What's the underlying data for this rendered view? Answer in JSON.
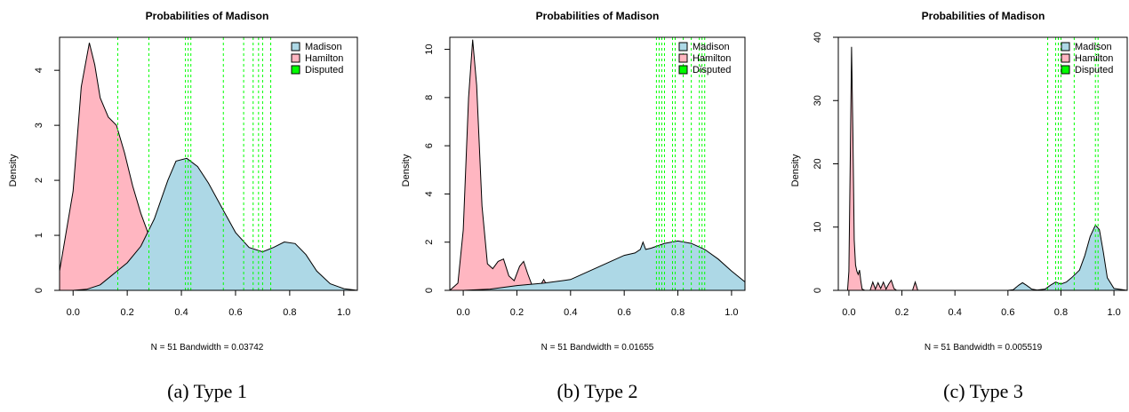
{
  "chart_data": [
    {
      "type": "area",
      "title": "Probabilities of Madison",
      "ylabel": "Density",
      "note": "N = 51   Bandwidth = 0.03742",
      "caption": "(a) Type 1",
      "xlim": [
        -0.05,
        1.05
      ],
      "ylim": [
        0,
        4.6
      ],
      "xticks": [
        0.0,
        0.2,
        0.4,
        0.6,
        0.8,
        1.0
      ],
      "xtick_labels": [
        "0.0",
        "0.2",
        "0.4",
        "0.6",
        "0.8",
        "1.0"
      ],
      "yticks": [
        0,
        1,
        2,
        3,
        4
      ],
      "ytick_labels": [
        "0",
        "1",
        "2",
        "3",
        "4"
      ],
      "legend": [
        {
          "label": "Madison",
          "color": "#ADD8E6"
        },
        {
          "label": "Hamilton",
          "color": "#FFB6C1"
        },
        {
          "label": "Disputed",
          "color": "#00FF00"
        }
      ],
      "legend_position": "top-right",
      "series": [
        {
          "name": "Hamilton",
          "color": "#FFB6C1",
          "x": [
            -0.05,
            0.0,
            0.03,
            0.06,
            0.08,
            0.1,
            0.13,
            0.16,
            0.19,
            0.22,
            0.25,
            0.28,
            0.32,
            0.36,
            0.4,
            0.44,
            0.48,
            0.5
          ],
          "y": [
            0.35,
            1.8,
            3.7,
            4.5,
            4.1,
            3.5,
            3.15,
            3.0,
            2.5,
            1.9,
            1.4,
            1.0,
            0.65,
            0.45,
            0.25,
            0.1,
            0.03,
            0.0
          ]
        },
        {
          "name": "Madison",
          "color": "#ADD8E6",
          "x": [
            0.0,
            0.05,
            0.1,
            0.15,
            0.2,
            0.25,
            0.3,
            0.35,
            0.38,
            0.42,
            0.46,
            0.5,
            0.55,
            0.6,
            0.65,
            0.7,
            0.74,
            0.78,
            0.82,
            0.86,
            0.9,
            0.95,
            1.0,
            1.05
          ],
          "y": [
            0.0,
            0.02,
            0.1,
            0.3,
            0.5,
            0.8,
            1.3,
            2.0,
            2.35,
            2.4,
            2.25,
            1.95,
            1.5,
            1.05,
            0.78,
            0.7,
            0.78,
            0.88,
            0.85,
            0.65,
            0.35,
            0.12,
            0.03,
            0.0
          ]
        }
      ],
      "disputed": [
        0.165,
        0.28,
        0.415,
        0.425,
        0.435,
        0.555,
        0.63,
        0.665,
        0.685,
        0.7,
        0.73
      ]
    },
    {
      "type": "area",
      "title": "Probabilities of Madison",
      "ylabel": "Density",
      "note": "N = 51   Bandwidth = 0.01655",
      "caption": "(b) Type 2",
      "xlim": [
        -0.05,
        1.05
      ],
      "ylim": [
        0,
        10.5
      ],
      "xticks": [
        0.0,
        0.2,
        0.4,
        0.6,
        0.8,
        1.0
      ],
      "xtick_labels": [
        "0.0",
        "0.2",
        "0.4",
        "0.6",
        "0.8",
        "1.0"
      ],
      "yticks": [
        0,
        2,
        4,
        6,
        8,
        10
      ],
      "ytick_labels": [
        "0",
        "2",
        "4",
        "6",
        "8",
        "10"
      ],
      "legend": [
        {
          "label": "Madison",
          "color": "#ADD8E6"
        },
        {
          "label": "Hamilton",
          "color": "#FFB6C1"
        },
        {
          "label": "Disputed",
          "color": "#00FF00"
        }
      ],
      "legend_position": "top-right",
      "series": [
        {
          "name": "Hamilton",
          "color": "#FFB6C1",
          "x": [
            -0.05,
            -0.02,
            0.0,
            0.02,
            0.035,
            0.05,
            0.07,
            0.09,
            0.11,
            0.13,
            0.15,
            0.17,
            0.19,
            0.21,
            0.225,
            0.24,
            0.26,
            0.28,
            0.3,
            0.32,
            0.34
          ],
          "y": [
            0.0,
            0.3,
            2.5,
            8.0,
            10.4,
            8.5,
            3.5,
            1.1,
            0.9,
            1.2,
            1.3,
            0.6,
            0.4,
            1.0,
            1.2,
            0.7,
            0.1,
            0.05,
            0.45,
            0.05,
            0.0
          ]
        },
        {
          "name": "Madison",
          "color": "#ADD8E6",
          "x": [
            0.0,
            0.1,
            0.2,
            0.3,
            0.4,
            0.5,
            0.6,
            0.64,
            0.66,
            0.67,
            0.68,
            0.7,
            0.75,
            0.8,
            0.85,
            0.9,
            0.95,
            1.0,
            1.05
          ],
          "y": [
            0.0,
            0.05,
            0.2,
            0.3,
            0.45,
            0.95,
            1.45,
            1.55,
            1.7,
            2.0,
            1.7,
            1.75,
            1.95,
            2.05,
            1.95,
            1.7,
            1.3,
            0.8,
            0.35
          ]
        }
      ],
      "disputed": [
        0.72,
        0.73,
        0.74,
        0.75,
        0.78,
        0.79,
        0.82,
        0.85,
        0.88,
        0.89,
        0.9
      ]
    },
    {
      "type": "area",
      "title": "Probabilities of Madison",
      "ylabel": "Density",
      "note": "N = 51   Bandwidth = 0.005519",
      "caption": "(c) Type 3",
      "xlim": [
        -0.04,
        1.05
      ],
      "ylim": [
        0,
        40
      ],
      "xticks": [
        0.0,
        0.2,
        0.4,
        0.6,
        0.8,
        1.0
      ],
      "xtick_labels": [
        "0.0",
        "0.2",
        "0.4",
        "0.6",
        "0.8",
        "1.0"
      ],
      "yticks": [
        0,
        10,
        20,
        30,
        40
      ],
      "ytick_labels": [
        "0",
        "10",
        "20",
        "30",
        "40"
      ],
      "legend": [
        {
          "label": "Madison",
          "color": "#ADD8E6"
        },
        {
          "label": "Hamilton",
          "color": "#FFB6C1"
        },
        {
          "label": "Disputed",
          "color": "#00FF00"
        }
      ],
      "legend_position": "top-right",
      "series": [
        {
          "name": "Hamilton",
          "color": "#FFB6C1",
          "x": [
            -0.005,
            0.0,
            0.005,
            0.01,
            0.015,
            0.02,
            0.025,
            0.03,
            0.035,
            0.04,
            0.045,
            0.05,
            0.06,
            0.08,
            0.09,
            0.1,
            0.11,
            0.12,
            0.13,
            0.14,
            0.15,
            0.16,
            0.17,
            0.18,
            0.2,
            0.24,
            0.25,
            0.26,
            0.27
          ],
          "y": [
            0.0,
            3.0,
            20.0,
            38.5,
            25.0,
            8.0,
            4.0,
            3.0,
            2.5,
            3.2,
            1.5,
            0.2,
            0.0,
            0.0,
            1.3,
            0.2,
            1.2,
            0.3,
            1.3,
            0.2,
            1.0,
            1.6,
            0.3,
            0.0,
            0.0,
            0.0,
            1.3,
            0.0,
            0.0
          ]
        },
        {
          "name": "Madison",
          "color": "#ADD8E6",
          "x": [
            0.6,
            0.62,
            0.64,
            0.655,
            0.67,
            0.69,
            0.71,
            0.74,
            0.76,
            0.78,
            0.8,
            0.82,
            0.84,
            0.87,
            0.89,
            0.91,
            0.93,
            0.945,
            0.96,
            0.975,
            1.0,
            1.05
          ],
          "y": [
            0.0,
            0.1,
            0.8,
            1.2,
            0.8,
            0.2,
            0.05,
            0.2,
            0.8,
            1.3,
            1.0,
            1.3,
            2.0,
            3.2,
            5.5,
            8.5,
            10.3,
            9.6,
            6.0,
            2.0,
            0.3,
            0.0
          ]
        }
      ],
      "disputed": [
        0.75,
        0.78,
        0.79,
        0.8,
        0.85,
        0.93,
        0.94
      ]
    }
  ],
  "captions": {
    "a": "(a) Type 1",
    "b": "(b) Type 2",
    "c": "(c) Type 3"
  }
}
